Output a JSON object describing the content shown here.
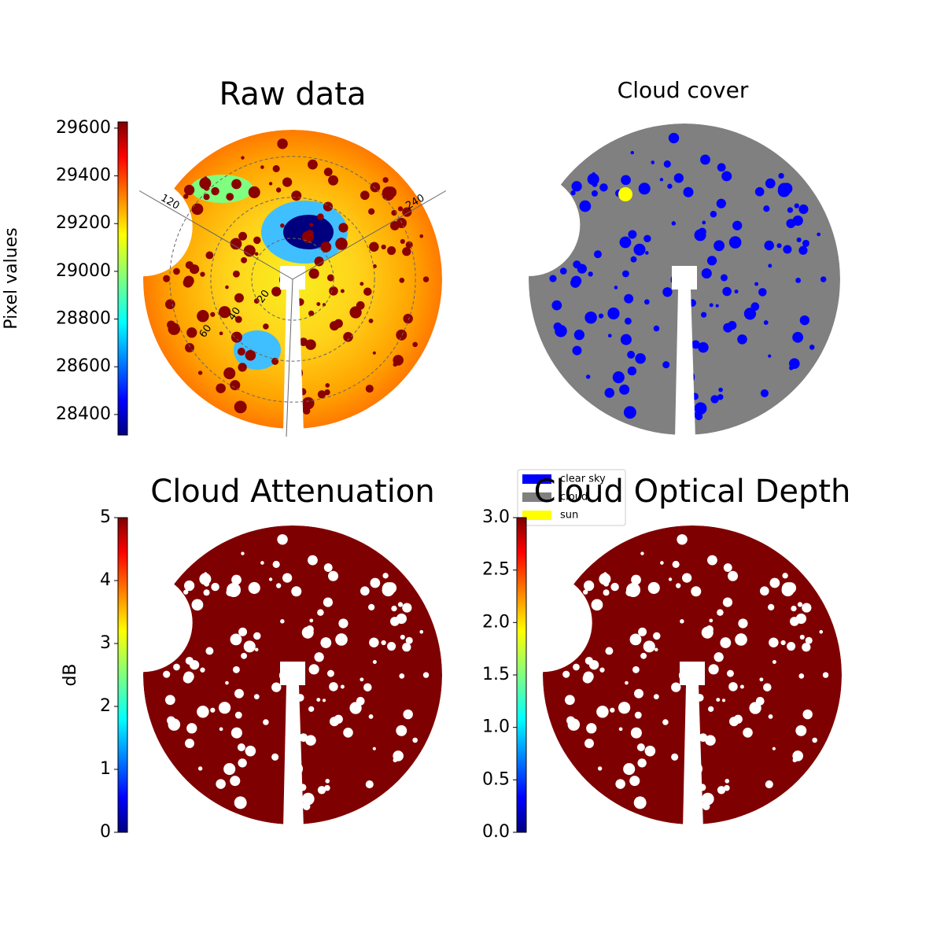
{
  "chart_data": [
    {
      "type": "image",
      "title": "Raw data",
      "colorbar_label": "Pixel values",
      "colormap": "jet",
      "ylim": [
        28314,
        29626
      ],
      "yticks": [
        28400,
        28600,
        28800,
        29000,
        29200,
        29400,
        29600
      ],
      "rlim": [
        0,
        73
      ],
      "rticks": [
        20,
        40,
        60
      ],
      "azimuth_ticks": [
        120,
        240
      ]
    },
    {
      "type": "classes",
      "title": "Cloud cover",
      "classes": [
        {
          "name": "clear sky",
          "color": "#0000ff"
        },
        {
          "name": "cloud",
          "color": "#808080"
        },
        {
          "name": "sun",
          "color": "#ffff00"
        }
      ]
    },
    {
      "type": "image",
      "title": "Cloud Attenuation",
      "colorbar_label": "dB",
      "colormap": "jet",
      "ylim": [
        0,
        5
      ],
      "yticks": [
        0,
        1,
        2,
        3,
        4,
        5
      ]
    },
    {
      "type": "image",
      "title": "Cloud Optical Depth",
      "colormap": "jet",
      "ylim": [
        0,
        3
      ],
      "yticks": [
        {
          "value": 0,
          "label": "0.0"
        },
        0.5,
        {
          "value": 1,
          "label": "1.0"
        },
        1.5,
        {
          "value": 2,
          "label": "2.0"
        },
        2.5,
        {
          "value": 3,
          "label": "3.0"
        }
      ]
    }
  ]
}
